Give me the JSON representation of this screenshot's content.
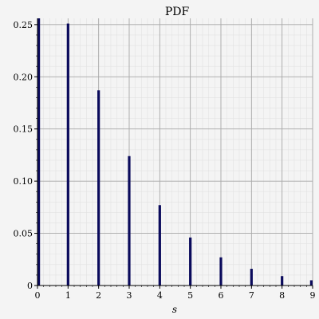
{
  "chart_data": {
    "type": "bar",
    "title": "PDF",
    "xlabel": "s",
    "ylabel": "",
    "x": [
      0,
      1,
      2,
      3,
      4,
      5,
      6,
      7,
      8,
      9
    ],
    "values": [
      0.256,
      0.251,
      0.187,
      0.124,
      0.077,
      0.046,
      0.027,
      0.016,
      0.009,
      0.005
    ],
    "xlim": [
      0,
      9
    ],
    "ylim": [
      0,
      0.256
    ],
    "xticks": [
      "0",
      "1",
      "2",
      "3",
      "4",
      "5",
      "6",
      "7",
      "8",
      "9"
    ],
    "yticks": [
      "0",
      "0.05",
      "0.10",
      "0.15",
      "0.20",
      "0.25"
    ],
    "ytick_values": [
      0,
      0.05,
      0.1,
      0.15,
      0.2,
      0.25
    ],
    "grid": true,
    "legend": "none",
    "colors": {
      "bar": "#0b0b5c",
      "grid_major": "#a8a8a8",
      "grid_minor": "#e2e2e2",
      "plot_background": "#f4f4f4",
      "axis": "#000000"
    }
  }
}
